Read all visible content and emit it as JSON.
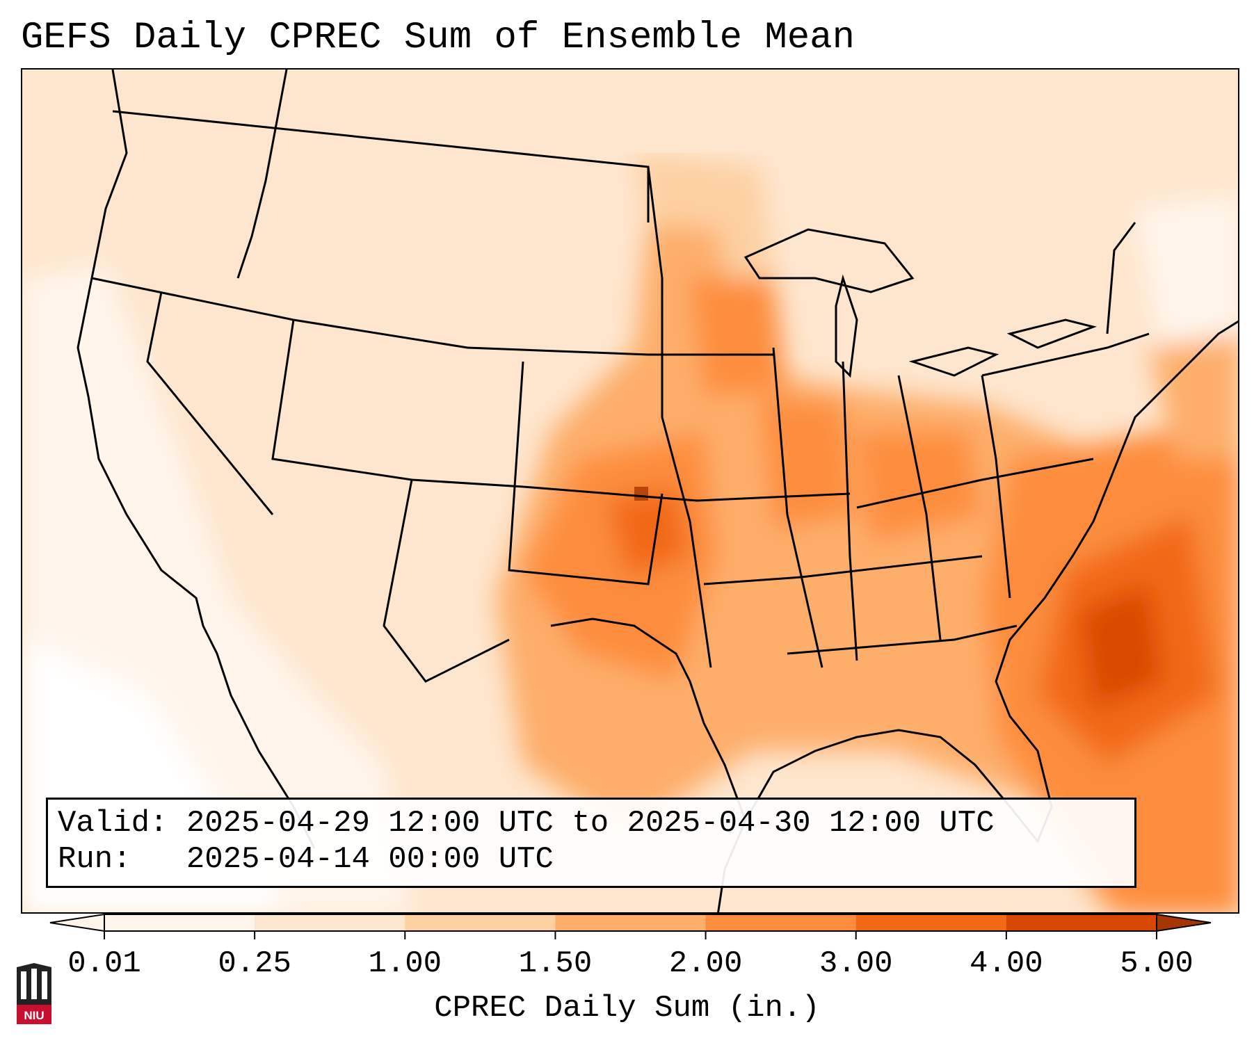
{
  "title": "GEFS Daily CPREC Sum of Ensemble Mean",
  "info": {
    "valid_label": "Valid:",
    "valid_value": "2025-04-29 12:00 UTC to 2025-04-30 12:00 UTC",
    "run_label": "Run:",
    "run_value": "2025-04-14 00:00 UTC"
  },
  "colorbar": {
    "label": "CPREC Daily Sum (in.)",
    "ticks": [
      "0.01",
      "0.25",
      "1.00",
      "1.50",
      "2.00",
      "3.00",
      "4.00",
      "5.00"
    ],
    "colors": [
      "#fff5eb",
      "#fee6ce",
      "#fdd0a2",
      "#fdae6b",
      "#fd8d3c",
      "#f16913",
      "#d94801",
      "#a63603"
    ],
    "extend": "both"
  },
  "map": {
    "region": "Contiguous United States",
    "features": [
      "state-borders",
      "country-borders",
      "coastlines",
      "great-lakes"
    ]
  },
  "logo": {
    "name": "niu-logo",
    "text": "NIU"
  }
}
